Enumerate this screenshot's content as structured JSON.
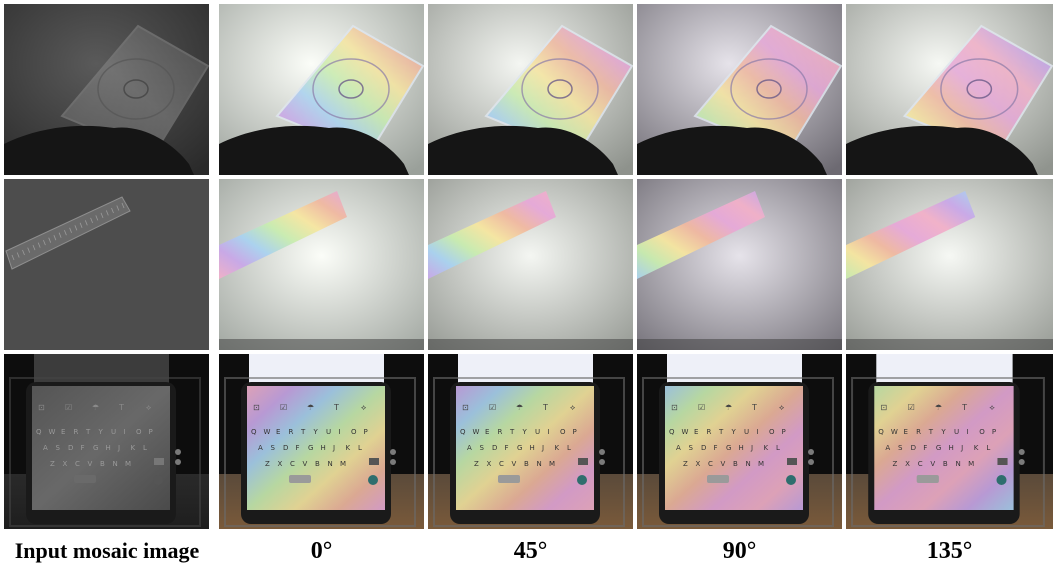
{
  "figure": {
    "columns": [
      {
        "id": "mosaic",
        "label": "Input mosaic image"
      },
      {
        "id": "deg0",
        "label": "0°"
      },
      {
        "id": "deg45",
        "label": "45°"
      },
      {
        "id": "deg90",
        "label": "90°"
      },
      {
        "id": "deg135",
        "label": "135°"
      }
    ],
    "rows": [
      {
        "id": "cd-case",
        "subject": "cd-case"
      },
      {
        "id": "ruler",
        "subject": "ruler"
      },
      {
        "id": "phone",
        "subject": "phone-keyboard"
      }
    ],
    "keyboard": {
      "row1": [
        "Q",
        "W",
        "E",
        "R",
        "T",
        "Y",
        "U",
        "I",
        "O",
        "P"
      ],
      "row2": [
        "A",
        "S",
        "D",
        "F",
        "G",
        "H",
        "J",
        "K",
        "L"
      ],
      "row3": [
        "Z",
        "X",
        "C",
        "V",
        "B",
        "N",
        "M"
      ],
      "toolbar_symbols": [
        "⊡",
        "☑",
        "☂",
        "T",
        "⟡"
      ]
    }
  }
}
